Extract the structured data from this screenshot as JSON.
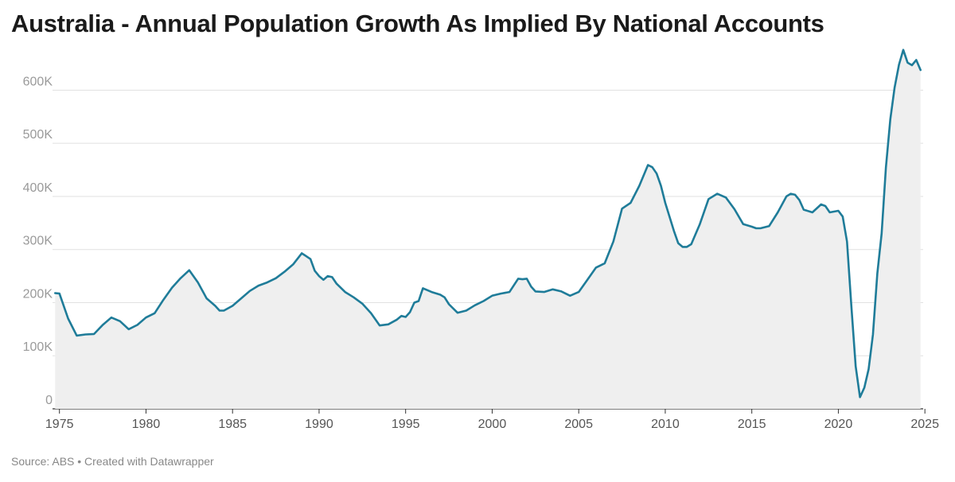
{
  "chart_data": {
    "type": "area",
    "title": "Australia - Annual Population Growth As Implied By National Accounts",
    "xlabel": "",
    "ylabel": "",
    "xlim": [
      1974.6,
      2024.9
    ],
    "ylim": [
      0,
      680000
    ],
    "x_ticks": [
      1975,
      1980,
      1985,
      1990,
      1995,
      2000,
      2005,
      2010,
      2015,
      2020,
      2025
    ],
    "x_tick_labels": [
      "1975",
      "1980",
      "1985",
      "1990",
      "1995",
      "2000",
      "2005",
      "2010",
      "2015",
      "2020",
      "2025"
    ],
    "y_ticks": [
      0,
      100000,
      200000,
      300000,
      400000,
      500000,
      600000
    ],
    "y_tick_labels": [
      "0",
      "100K",
      "200K",
      "300K",
      "400K",
      "500K",
      "600K"
    ],
    "grid": true,
    "series": [
      {
        "name": "",
        "color": "#1f7c99",
        "fill": "#efefef",
        "points": [
          [
            1974.75,
            218000
          ],
          [
            1975.0,
            217000
          ],
          [
            1975.5,
            170000
          ],
          [
            1976.0,
            138000
          ],
          [
            1976.5,
            140000
          ],
          [
            1977.0,
            141000
          ],
          [
            1977.5,
            158000
          ],
          [
            1978.0,
            172000
          ],
          [
            1978.5,
            165000
          ],
          [
            1979.0,
            150000
          ],
          [
            1979.5,
            158000
          ],
          [
            1980.0,
            172000
          ],
          [
            1980.5,
            180000
          ],
          [
            1981.0,
            205000
          ],
          [
            1981.5,
            228000
          ],
          [
            1982.0,
            246000
          ],
          [
            1982.5,
            261000
          ],
          [
            1983.0,
            238000
          ],
          [
            1983.5,
            208000
          ],
          [
            1984.0,
            194000
          ],
          [
            1984.25,
            185000
          ],
          [
            1984.5,
            185000
          ],
          [
            1985.0,
            194000
          ],
          [
            1985.5,
            208000
          ],
          [
            1986.0,
            222000
          ],
          [
            1986.5,
            232000
          ],
          [
            1987.0,
            238000
          ],
          [
            1987.5,
            246000
          ],
          [
            1988.0,
            258000
          ],
          [
            1988.5,
            272000
          ],
          [
            1989.0,
            293000
          ],
          [
            1989.5,
            282000
          ],
          [
            1989.75,
            260000
          ],
          [
            1990.0,
            250000
          ],
          [
            1990.25,
            243000
          ],
          [
            1990.5,
            250000
          ],
          [
            1990.75,
            248000
          ],
          [
            1991.0,
            236000
          ],
          [
            1991.5,
            220000
          ],
          [
            1992.0,
            210000
          ],
          [
            1992.5,
            198000
          ],
          [
            1993.0,
            180000
          ],
          [
            1993.5,
            157000
          ],
          [
            1994.0,
            159000
          ],
          [
            1994.5,
            168000
          ],
          [
            1994.75,
            175000
          ],
          [
            1995.0,
            173000
          ],
          [
            1995.25,
            182000
          ],
          [
            1995.5,
            200000
          ],
          [
            1995.75,
            203000
          ],
          [
            1996.0,
            227000
          ],
          [
            1996.5,
            220000
          ],
          [
            1997.0,
            215000
          ],
          [
            1997.25,
            210000
          ],
          [
            1997.5,
            197000
          ],
          [
            1998.0,
            181000
          ],
          [
            1998.5,
            185000
          ],
          [
            1999.0,
            195000
          ],
          [
            1999.5,
            203000
          ],
          [
            2000.0,
            213000
          ],
          [
            2000.5,
            217000
          ],
          [
            2001.0,
            220000
          ],
          [
            2001.5,
            245000
          ],
          [
            2001.75,
            244000
          ],
          [
            2002.0,
            245000
          ],
          [
            2002.25,
            230000
          ],
          [
            2002.5,
            221000
          ],
          [
            2003.0,
            220000
          ],
          [
            2003.5,
            225000
          ],
          [
            2004.0,
            221000
          ],
          [
            2004.5,
            213000
          ],
          [
            2005.0,
            220000
          ],
          [
            2005.5,
            243000
          ],
          [
            2006.0,
            266000
          ],
          [
            2006.5,
            274000
          ],
          [
            2007.0,
            315000
          ],
          [
            2007.5,
            377000
          ],
          [
            2008.0,
            388000
          ],
          [
            2008.5,
            420000
          ],
          [
            2009.0,
            459000
          ],
          [
            2009.25,
            455000
          ],
          [
            2009.5,
            443000
          ],
          [
            2009.75,
            420000
          ],
          [
            2010.0,
            388000
          ],
          [
            2010.5,
            335000
          ],
          [
            2010.75,
            312000
          ],
          [
            2011.0,
            305000
          ],
          [
            2011.25,
            305000
          ],
          [
            2011.5,
            310000
          ],
          [
            2012.0,
            348000
          ],
          [
            2012.5,
            395000
          ],
          [
            2013.0,
            405000
          ],
          [
            2013.5,
            398000
          ],
          [
            2014.0,
            376000
          ],
          [
            2014.5,
            348000
          ],
          [
            2015.0,
            343000
          ],
          [
            2015.25,
            340000
          ],
          [
            2015.5,
            340000
          ],
          [
            2016.0,
            344000
          ],
          [
            2016.5,
            370000
          ],
          [
            2017.0,
            400000
          ],
          [
            2017.25,
            405000
          ],
          [
            2017.5,
            403000
          ],
          [
            2017.75,
            393000
          ],
          [
            2018.0,
            375000
          ],
          [
            2018.5,
            370000
          ],
          [
            2019.0,
            385000
          ],
          [
            2019.25,
            382000
          ],
          [
            2019.5,
            370000
          ],
          [
            2020.0,
            373000
          ],
          [
            2020.25,
            362000
          ],
          [
            2020.5,
            315000
          ],
          [
            2020.75,
            195000
          ],
          [
            2021.0,
            80000
          ],
          [
            2021.25,
            22000
          ],
          [
            2021.5,
            40000
          ],
          [
            2021.75,
            75000
          ],
          [
            2022.0,
            140000
          ],
          [
            2022.25,
            255000
          ],
          [
            2022.5,
            330000
          ],
          [
            2022.75,
            455000
          ],
          [
            2023.0,
            545000
          ],
          [
            2023.25,
            605000
          ],
          [
            2023.5,
            648000
          ],
          [
            2023.75,
            676000
          ],
          [
            2024.0,
            652000
          ],
          [
            2024.25,
            647000
          ],
          [
            2024.5,
            657000
          ],
          [
            2024.75,
            638000
          ]
        ]
      }
    ]
  },
  "footer": {
    "source": "Source: ABS • Created with Datawrapper"
  }
}
